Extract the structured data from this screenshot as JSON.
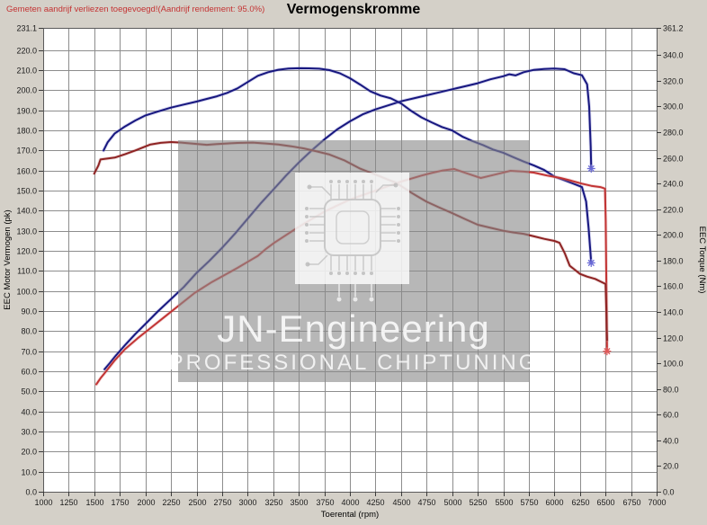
{
  "header": {
    "note": "Gemeten aandrijf verliezen toegevoegd!(Aandrijf rendement: 95.0%)",
    "title": "Vermogenskromme"
  },
  "watermark": {
    "line1": "JN-Engineering",
    "line2": "PROFESSIONAL CHIPTUNING"
  },
  "colors": {
    "background": "#d4d0c8",
    "plot_bg": "#ffffff",
    "grid": "#8d8d8d",
    "border": "#5a5a5a",
    "note_red": "#c43333"
  },
  "chart_data": {
    "type": "line",
    "title": "Vermogenskromme",
    "xlabel": "Toerental (rpm)",
    "ylabel_left": "EEC Motor Vermogen (pk)",
    "ylabel_right": "EEC Torque (Nm)",
    "xlim": [
      1000,
      7000
    ],
    "ylim_left": [
      0,
      231.1
    ],
    "ylim_right": [
      0,
      361.2
    ],
    "grid": true,
    "legend": false,
    "x_ticks": [
      1000,
      1250,
      1500,
      1750,
      2000,
      2250,
      2500,
      2750,
      3000,
      3250,
      3500,
      3750,
      4000,
      4250,
      4500,
      4750,
      5000,
      5250,
      5500,
      5750,
      6000,
      6250,
      6500,
      6750,
      7000
    ],
    "left_ticks": [
      231.1,
      220,
      210,
      200,
      190,
      180,
      170,
      160,
      150,
      140,
      130,
      120,
      110,
      100,
      90,
      80,
      70,
      60,
      50,
      40,
      30,
      20,
      10,
      0
    ],
    "right_ticks": [
      361.2,
      340,
      320,
      300,
      280,
      260,
      240,
      220,
      200,
      180,
      160,
      140,
      120,
      100,
      80,
      60,
      40,
      20,
      0
    ],
    "series": [
      {
        "id": "power-tuned-blue",
        "axis": "left",
        "unit": "pk",
        "color": "#17177f",
        "halo": "#8484cf",
        "end_marker": true,
        "marker_color": "#6a6ad6",
        "points": [
          [
            1600,
            61
          ],
          [
            1650,
            64
          ],
          [
            1700,
            67.2
          ],
          [
            1800,
            73
          ],
          [
            1900,
            78.5
          ],
          [
            2000,
            83.6
          ],
          [
            2125,
            90
          ],
          [
            2250,
            96
          ],
          [
            2375,
            102
          ],
          [
            2500,
            109
          ],
          [
            2625,
            115
          ],
          [
            2750,
            121.5
          ],
          [
            2875,
            128.5
          ],
          [
            3000,
            136
          ],
          [
            3125,
            143.5
          ],
          [
            3250,
            150.5
          ],
          [
            3375,
            157.5
          ],
          [
            3500,
            164
          ],
          [
            3625,
            170
          ],
          [
            3750,
            175.5
          ],
          [
            3875,
            180.5
          ],
          [
            4000,
            184.5
          ],
          [
            4125,
            188
          ],
          [
            4250,
            190.5
          ],
          [
            4375,
            192.5
          ],
          [
            4500,
            194.5
          ],
          [
            4625,
            196
          ],
          [
            4750,
            197.5
          ],
          [
            4875,
            199
          ],
          [
            5000,
            200.5
          ],
          [
            5125,
            202
          ],
          [
            5250,
            203.5
          ],
          [
            5375,
            205.5
          ],
          [
            5500,
            207
          ],
          [
            5560,
            208
          ],
          [
            5620,
            207.4
          ],
          [
            5700,
            209
          ],
          [
            5800,
            210.2
          ],
          [
            5900,
            210.6
          ],
          [
            6000,
            210.8
          ],
          [
            6100,
            210.5
          ],
          [
            6190,
            208.5
          ],
          [
            6270,
            207.5
          ],
          [
            6320,
            203
          ],
          [
            6340,
            192
          ],
          [
            6355,
            172
          ],
          [
            6360,
            161
          ]
        ]
      },
      {
        "id": "torque-tuned-blue",
        "axis": "right",
        "unit": "Nm",
        "color": "#17177f",
        "halo": "#8484cf",
        "end_marker": true,
        "marker_color": "#6a6ad6",
        "points": [
          [
            1590,
            265.7
          ],
          [
            1630,
            272
          ],
          [
            1700,
            279
          ],
          [
            1800,
            284.4
          ],
          [
            1900,
            289
          ],
          [
            2000,
            293
          ],
          [
            2125,
            296.2
          ],
          [
            2250,
            299.1
          ],
          [
            2375,
            301.5
          ],
          [
            2500,
            303.8
          ],
          [
            2600,
            305.9
          ],
          [
            2700,
            307.9
          ],
          [
            2800,
            310.6
          ],
          [
            2900,
            314.1
          ],
          [
            3000,
            319
          ],
          [
            3100,
            323.9
          ],
          [
            3200,
            326.7
          ],
          [
            3300,
            328.6
          ],
          [
            3400,
            329.5
          ],
          [
            3500,
            329.8
          ],
          [
            3600,
            329.7
          ],
          [
            3700,
            329.4
          ],
          [
            3800,
            328.3
          ],
          [
            3900,
            325.9
          ],
          [
            4000,
            322
          ],
          [
            4100,
            317
          ],
          [
            4200,
            311.8
          ],
          [
            4300,
            308.5
          ],
          [
            4400,
            306.3
          ],
          [
            4500,
            302.4
          ],
          [
            4600,
            296.5
          ],
          [
            4700,
            291.5
          ],
          [
            4800,
            287.6
          ],
          [
            4900,
            284
          ],
          [
            5000,
            281.3
          ],
          [
            5100,
            276.6
          ],
          [
            5200,
            273
          ],
          [
            5300,
            270
          ],
          [
            5400,
            266.5
          ],
          [
            5500,
            264
          ],
          [
            5600,
            260.5
          ],
          [
            5700,
            257.1
          ],
          [
            5800,
            254
          ],
          [
            5900,
            250.5
          ],
          [
            6000,
            245.4
          ],
          [
            6100,
            242.5
          ],
          [
            6200,
            239.5
          ],
          [
            6270,
            237.2
          ],
          [
            6310,
            226
          ],
          [
            6335,
            205
          ],
          [
            6360,
            178.2
          ]
        ]
      },
      {
        "id": "power-original-red",
        "axis": "left",
        "unit": "pk",
        "color": "#c23434",
        "halo": "#e09b9b",
        "end_marker": true,
        "marker_color": "#e25858",
        "points": [
          [
            1520,
            53.5
          ],
          [
            1560,
            56.5
          ],
          [
            1600,
            59
          ],
          [
            1700,
            65.5
          ],
          [
            1800,
            71
          ],
          [
            1925,
            76.5
          ],
          [
            2050,
            81.5
          ],
          [
            2185,
            87
          ],
          [
            2320,
            92.5
          ],
          [
            2480,
            99
          ],
          [
            2650,
            104.5
          ],
          [
            2775,
            108
          ],
          [
            2900,
            111.5
          ],
          [
            3000,
            114.5
          ],
          [
            3100,
            117.5
          ],
          [
            3180,
            121
          ],
          [
            3260,
            124
          ],
          [
            3380,
            128
          ],
          [
            3500,
            132
          ],
          [
            3625,
            135.8
          ],
          [
            3750,
            139.5
          ],
          [
            3875,
            142.6
          ],
          [
            4000,
            145.5
          ],
          [
            4125,
            147.8
          ],
          [
            4250,
            150
          ],
          [
            4375,
            152.3
          ],
          [
            4500,
            154.5
          ],
          [
            4600,
            156
          ],
          [
            4700,
            157.5
          ],
          [
            4800,
            158.8
          ],
          [
            4900,
            160
          ],
          [
            5020,
            160.8
          ],
          [
            5150,
            158.5
          ],
          [
            5280,
            156.3
          ],
          [
            5420,
            158
          ],
          [
            5570,
            159.9
          ],
          [
            5700,
            159.5
          ],
          [
            5800,
            159
          ],
          [
            5930,
            157.5
          ],
          [
            6060,
            156.3
          ],
          [
            6160,
            155
          ],
          [
            6270,
            153.5
          ],
          [
            6360,
            152.4
          ],
          [
            6450,
            151.8
          ],
          [
            6495,
            151
          ],
          [
            6502,
            135
          ],
          [
            6508,
            105
          ],
          [
            6515,
            70
          ]
        ]
      },
      {
        "id": "torque-original-red",
        "axis": "right",
        "unit": "Nm",
        "color": "#8e2323",
        "halo": "#c98f8f",
        "end_marker": false,
        "marker_color": "#e25858",
        "points": [
          [
            1500,
            247.7
          ],
          [
            1540,
            254
          ],
          [
            1560,
            258.7
          ],
          [
            1700,
            260.2
          ],
          [
            1800,
            262.8
          ],
          [
            1900,
            265.7
          ],
          [
            2050,
            270.4
          ],
          [
            2150,
            271.7
          ],
          [
            2250,
            272.3
          ],
          [
            2350,
            271.9
          ],
          [
            2450,
            271.2
          ],
          [
            2600,
            270.1
          ],
          [
            2700,
            270.7
          ],
          [
            2800,
            271.2
          ],
          [
            2900,
            271.6
          ],
          [
            3050,
            271.9
          ],
          [
            3175,
            271.2
          ],
          [
            3300,
            270.4
          ],
          [
            3425,
            269
          ],
          [
            3550,
            267.3
          ],
          [
            3675,
            265
          ],
          [
            3800,
            262.6
          ],
          [
            3950,
            257.9
          ],
          [
            4100,
            251.6
          ],
          [
            4200,
            248.5
          ],
          [
            4300,
            245.4
          ],
          [
            4375,
            243
          ],
          [
            4450,
            240.7
          ],
          [
            4525,
            236.8
          ],
          [
            4600,
            232.9
          ],
          [
            4675,
            229.3
          ],
          [
            4750,
            225.8
          ],
          [
            4875,
            221.3
          ],
          [
            5000,
            216.9
          ],
          [
            5125,
            212.4
          ],
          [
            5250,
            207.9
          ],
          [
            5375,
            205.5
          ],
          [
            5500,
            203.2
          ],
          [
            5600,
            201.9
          ],
          [
            5700,
            200.8
          ],
          [
            5800,
            198.9
          ],
          [
            5900,
            196.9
          ],
          [
            6000,
            195.3
          ],
          [
            6050,
            193.8
          ],
          [
            6100,
            186
          ],
          [
            6150,
            176
          ],
          [
            6250,
            169.6
          ],
          [
            6320,
            167.5
          ],
          [
            6400,
            165.7
          ],
          [
            6450,
            163.7
          ],
          [
            6500,
            161.8
          ],
          [
            6508,
            142
          ],
          [
            6512,
            127
          ],
          [
            6515,
            118
          ]
        ]
      }
    ]
  }
}
